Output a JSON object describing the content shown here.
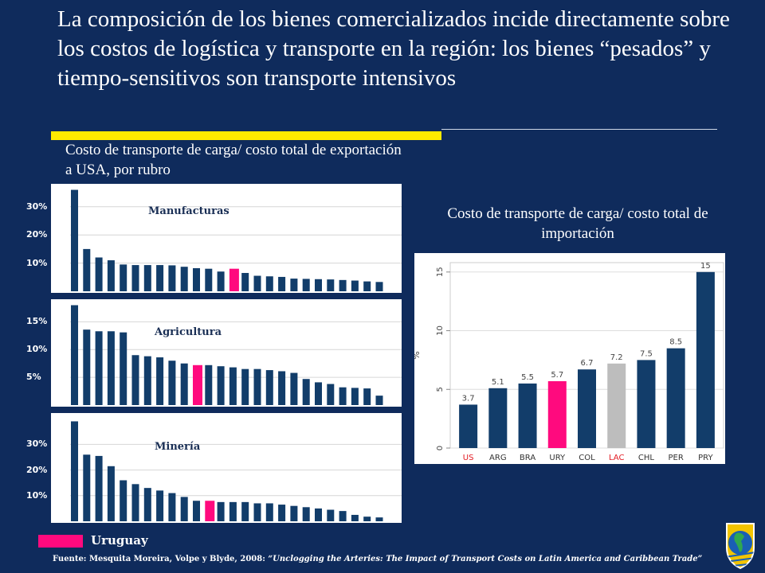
{
  "slide": {
    "title": "La composición de los bienes comercializados incide directamente sobre los costos de logística y transporte en la región: los bienes “pesados” y tiempo-sensitivos son transporte intensivos",
    "left_heading": "Costo de transporte de carga/ costo total de exportación a USA, por rubro",
    "right_heading": "Costo de transporte de carga/ costo total de importación",
    "legend_label": "Uruguay",
    "source_prefix": "Fuente: Mesquita Moreira, Volpe y Blyde, 2008: ",
    "source_italic": "“Unclogging the Arteries: The Impact of Transport Costs on Latin America and Caribbean Trade”"
  },
  "colors": {
    "background": "#0f2b5c",
    "bar": "#123d6a",
    "highlight": "#ff0a7e",
    "lac": "#bdbdbd",
    "accent_yellow": "#ffea00"
  },
  "chart_data": [
    {
      "type": "bar",
      "title": "Manufacturas",
      "yticks": [
        "10%",
        "20%",
        "30%"
      ],
      "ylim": [
        0,
        37
      ],
      "highlight_index": 13,
      "values": [
        36,
        15,
        12,
        11,
        9.5,
        9.3,
        9.3,
        9.3,
        9.2,
        8.7,
        8.2,
        8,
        7,
        8,
        6.5,
        5.5,
        5.3,
        5.1,
        4.5,
        4.4,
        4.3,
        4.2,
        4,
        3.8,
        3.5,
        3.3
      ]
    },
    {
      "type": "bar",
      "title": "Agricultura",
      "yticks": [
        "5%",
        "10%",
        "15%"
      ],
      "ylim": [
        0,
        18.5
      ],
      "highlight_index": 10,
      "values": [
        18,
        13.6,
        13.3,
        13.3,
        13.1,
        9,
        8.8,
        8.6,
        8,
        7.5,
        7.2,
        7.2,
        7,
        6.8,
        6.5,
        6.5,
        6.3,
        6.1,
        5.8,
        4.7,
        4.1,
        3.8,
        3.2,
        3.1,
        3,
        1.7
      ]
    },
    {
      "type": "bar",
      "title": "Minería",
      "yticks": [
        "10%",
        "20%",
        "30%"
      ],
      "ylim": [
        0,
        41
      ],
      "highlight_index": 11,
      "values": [
        39,
        26,
        25.5,
        21.5,
        16,
        14.5,
        13,
        12,
        11,
        9.5,
        8,
        8,
        7.5,
        7.5,
        7.5,
        7,
        7,
        6.5,
        6,
        5.5,
        5,
        4.5,
        4,
        2.5,
        1.8,
        1.5
      ]
    },
    {
      "type": "bar",
      "ylabel": "%",
      "ylim": [
        0,
        15.8
      ],
      "yticks": [
        "0",
        "5",
        "10",
        "15"
      ],
      "categories": [
        "US",
        "ARG",
        "BRA",
        "URY",
        "COL",
        "LAC",
        "CHL",
        "PER",
        "PRY"
      ],
      "values": [
        3.7,
        5.1,
        5.5,
        5.7,
        6.7,
        7.2,
        7.5,
        8.5,
        15
      ],
      "value_labels": [
        "3.7",
        "5.1",
        "5.5",
        "5.7",
        "6.7",
        "7.2",
        "7.5",
        "8.5",
        "15"
      ],
      "bar_colors": [
        "#123d6a",
        "#123d6a",
        "#123d6a",
        "#ff0a7e",
        "#123d6a",
        "#bdbdbd",
        "#123d6a",
        "#123d6a",
        "#123d6a"
      ],
      "label_colors": [
        "#e31b23",
        "#333333",
        "#333333",
        "#333333",
        "#333333",
        "#e31b23",
        "#333333",
        "#333333",
        "#333333"
      ]
    }
  ]
}
